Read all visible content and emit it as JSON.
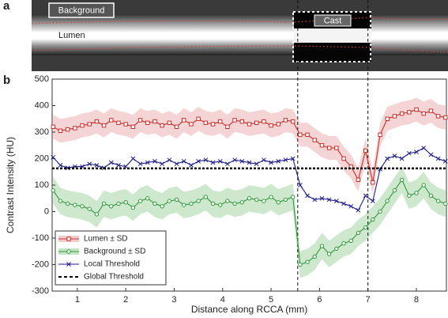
{
  "panel_labels": [
    "a",
    "b"
  ],
  "image_labels": {
    "background": "Background",
    "lumen": "Lumen",
    "cast": "Cast"
  },
  "chart_data": {
    "type": "line",
    "xlabel": "Distance along RCCA (mm)",
    "ylabel": "Contrast Intensity (HU)",
    "x": [
      0.5,
      0.65,
      0.8,
      0.95,
      1.1,
      1.25,
      1.4,
      1.55,
      1.7,
      1.85,
      2.0,
      2.15,
      2.3,
      2.45,
      2.6,
      2.75,
      2.9,
      3.05,
      3.2,
      3.35,
      3.5,
      3.65,
      3.8,
      3.95,
      4.1,
      4.25,
      4.4,
      4.55,
      4.7,
      4.85,
      5.0,
      5.15,
      5.3,
      5.45,
      5.6,
      5.75,
      5.9,
      6.05,
      6.2,
      6.35,
      6.5,
      6.65,
      6.8,
      6.95,
      7.1,
      7.25,
      7.4,
      7.55,
      7.7,
      7.85,
      8.0,
      8.15,
      8.3,
      8.45,
      8.6
    ],
    "series": [
      {
        "name": "Lumen ± SD",
        "color": "#c9302c",
        "band_color": "#f2cccc",
        "marker": "square",
        "sd": 45,
        "values": [
          320,
          305,
          310,
          315,
          325,
          330,
          340,
          325,
          345,
          335,
          330,
          320,
          345,
          335,
          340,
          325,
          335,
          320,
          345,
          330,
          350,
          335,
          330,
          340,
          320,
          345,
          340,
          330,
          335,
          340,
          325,
          330,
          345,
          340,
          290,
          290,
          270,
          250,
          240,
          240,
          200,
          170,
          120,
          230,
          110,
          290,
          350,
          360,
          370,
          375,
          385,
          370,
          380,
          360,
          355
        ]
      },
      {
        "name": "Background ± SD",
        "color": "#2e9a3a",
        "band_color": "#c4e4c4",
        "marker": "circle",
        "sd": 50,
        "values": [
          80,
          40,
          30,
          25,
          20,
          10,
          -10,
          30,
          20,
          30,
          35,
          15,
          40,
          50,
          30,
          20,
          40,
          45,
          25,
          30,
          40,
          55,
          30,
          25,
          40,
          30,
          35,
          50,
          45,
          40,
          55,
          35,
          45,
          55,
          -200,
          -190,
          -170,
          -130,
          -160,
          -140,
          -120,
          -110,
          -80,
          -60,
          -30,
          0,
          40,
          80,
          120,
          60,
          70,
          100,
          60,
          40,
          30
        ]
      },
      {
        "name": "Local Threshold",
        "color": "#1c1c8a",
        "marker": "cross",
        "values": [
          205,
          175,
          165,
          170,
          170,
          180,
          175,
          165,
          185,
          175,
          170,
          200,
          180,
          185,
          190,
          180,
          195,
          180,
          190,
          175,
          190,
          195,
          185,
          190,
          180,
          195,
          190,
          185,
          180,
          195,
          185,
          190,
          195,
          200,
          100,
          60,
          45,
          50,
          45,
          40,
          30,
          20,
          5,
          60,
          40,
          160,
          200,
          210,
          200,
          220,
          225,
          240,
          215,
          200,
          190
        ]
      },
      {
        "name": "Global Threshold",
        "color": "#000000",
        "dashed": true,
        "value": 163
      }
    ],
    "markers": [
      5.55,
      7.0
    ],
    "xlim": [
      0.48,
      8.62
    ],
    "ylim": [
      -300,
      500
    ],
    "xticks": [
      1,
      2,
      3,
      4,
      5,
      6,
      7,
      8
    ],
    "yticks": [
      -300,
      -200,
      -100,
      0,
      100,
      200,
      300,
      400,
      500
    ],
    "grid": false,
    "legend": "lower left"
  }
}
